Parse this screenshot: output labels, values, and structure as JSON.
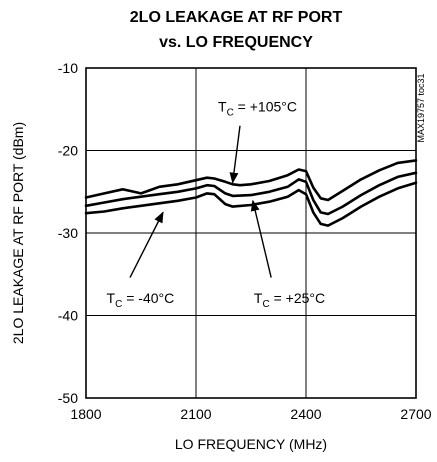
{
  "chart_data": {
    "type": "line",
    "title_lines": [
      "2LO LEAKAGE AT RF PORT",
      "vs. LO FREQUENCY"
    ],
    "xlabel": "LO FREQUENCY (MHz)",
    "ylabel": "2LO LEAKAGE AT RF PORT (dBm)",
    "part_number": "MAX19757 toc31",
    "xlim": [
      1800,
      2700
    ],
    "ylim": [
      -50,
      -10
    ],
    "xticks": [
      1800,
      2100,
      2400,
      2700
    ],
    "yticks": [
      -10,
      -20,
      -30,
      -40,
      -50
    ],
    "x_tick_labels": [
      "1800",
      "2100",
      "2400",
      "2700"
    ],
    "y_tick_labels": [
      "-10",
      "-20",
      "-30",
      "-40",
      "-50"
    ],
    "grid": true,
    "series": [
      {
        "id": "105",
        "annotation_main": "T",
        "annotation_sub": "C",
        "annotation_rest": " = +105°C",
        "x": [
          1800,
          1850,
          1900,
          1920,
          1950,
          1975,
          2000,
          2050,
          2100,
          2130,
          2150,
          2180,
          2200,
          2220,
          2250,
          2300,
          2350,
          2380,
          2400,
          2420,
          2440,
          2460,
          2500,
          2550,
          2600,
          2650,
          2700
        ],
        "y": [
          -25.7,
          -25.2,
          -24.7,
          -24.9,
          -25.2,
          -24.8,
          -24.4,
          -24.1,
          -23.6,
          -23.3,
          -23.4,
          -23.8,
          -24.1,
          -24.2,
          -24.1,
          -23.7,
          -23.0,
          -22.3,
          -22.5,
          -24.5,
          -25.8,
          -26.0,
          -24.9,
          -23.5,
          -22.4,
          -21.5,
          -21.2
        ]
      },
      {
        "id": "25",
        "annotation_main": "T",
        "annotation_sub": "C",
        "annotation_rest": " = +25°C",
        "x": [
          1800,
          1850,
          1900,
          1950,
          2000,
          2050,
          2100,
          2130,
          2150,
          2180,
          2200,
          2250,
          2300,
          2350,
          2380,
          2400,
          2420,
          2440,
          2460,
          2500,
          2550,
          2600,
          2650,
          2700
        ],
        "y": [
          -26.7,
          -26.3,
          -25.9,
          -25.6,
          -25.3,
          -25.0,
          -24.6,
          -24.2,
          -24.3,
          -25.2,
          -25.5,
          -25.4,
          -25.0,
          -24.4,
          -23.5,
          -23.8,
          -26.0,
          -27.5,
          -27.7,
          -26.8,
          -25.4,
          -24.2,
          -23.2,
          -22.7
        ]
      },
      {
        "id": "-40",
        "annotation_main": "T",
        "annotation_sub": "C",
        "annotation_rest": " = -40°C",
        "x": [
          1800,
          1850,
          1900,
          1950,
          2000,
          2050,
          2100,
          2130,
          2150,
          2180,
          2200,
          2250,
          2300,
          2350,
          2380,
          2400,
          2420,
          2440,
          2460,
          2500,
          2550,
          2600,
          2650,
          2700
        ],
        "y": [
          -27.6,
          -27.4,
          -27.0,
          -26.7,
          -26.4,
          -26.1,
          -25.7,
          -25.2,
          -25.3,
          -26.5,
          -26.8,
          -26.6,
          -26.2,
          -25.6,
          -24.8,
          -25.3,
          -27.5,
          -28.9,
          -29.1,
          -28.2,
          -26.8,
          -25.6,
          -24.6,
          -23.9
        ]
      }
    ],
    "annotations": [
      {
        "series": "105",
        "text_x": 2160,
        "text_y": -15.3,
        "arrow_from": [
          2220,
          -17.0
        ],
        "arrow_to": [
          2200,
          -23.9
        ]
      },
      {
        "series": "-40",
        "text_x": 1856,
        "text_y": -38.5,
        "arrow_from": [
          1920,
          -35.4
        ],
        "arrow_to": [
          2010,
          -27.5
        ]
      },
      {
        "series": "25",
        "text_x": 2258,
        "text_y": -38.5,
        "arrow_from": [
          2305,
          -35.4
        ],
        "arrow_to": [
          2255,
          -26.1
        ]
      }
    ]
  }
}
